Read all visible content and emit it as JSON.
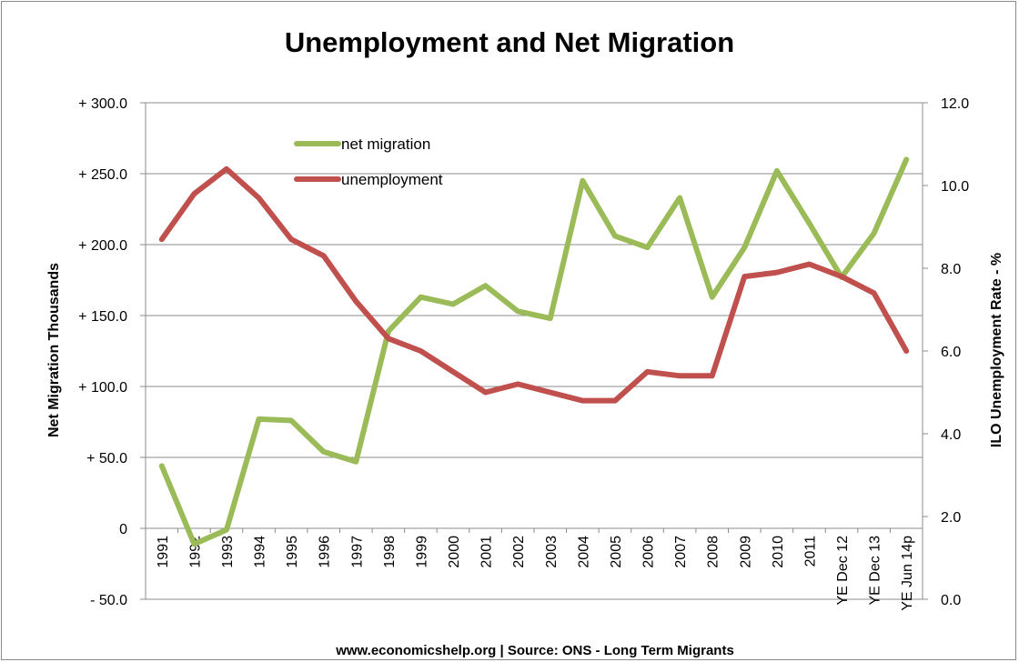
{
  "chart_data": {
    "type": "line",
    "title": "Unemployment and Net Migration",
    "footer": "www.economicshelp.org | Source: ONS - Long Term Migrants",
    "categories": [
      "1991",
      "1992",
      "1993",
      "1994",
      "1995",
      "1996",
      "1997",
      "1998",
      "1999",
      "2000",
      "2001",
      "2002",
      "2003",
      "2004",
      "2005",
      "2006",
      "2007",
      "2008",
      "2009",
      "2010",
      "2011",
      "YE Dec 12",
      "YE Dec 13",
      "YE Jun 14p"
    ],
    "y_left": {
      "label": "Net Migration Thousands",
      "ylim": [
        -50,
        300
      ],
      "ticks": [
        -50,
        0,
        50,
        100,
        150,
        200,
        250,
        300
      ],
      "tick_labels": [
        "-  50.0",
        "0",
        "+  50.0",
        "+  100.0",
        "+  150.0",
        "+  200.0",
        "+  250.0",
        "+  300.0"
      ]
    },
    "y_right": {
      "label": "ILO Unemployment Rate - %",
      "ylim": [
        0,
        12
      ],
      "ticks": [
        0,
        2,
        4,
        6,
        8,
        10,
        12
      ],
      "tick_labels": [
        "0.0",
        "2.0",
        "4.0",
        "6.0",
        "8.0",
        "10.0",
        "12.0"
      ]
    },
    "grid": true,
    "legend_position": "top-left",
    "series": [
      {
        "name": "net migration",
        "axis": "left",
        "color": "#9bbb59",
        "values": [
          44,
          -11,
          -1,
          77,
          76,
          54,
          47,
          139,
          163,
          158,
          171,
          153,
          148,
          245,
          206,
          198,
          233,
          163,
          198,
          252,
          215,
          177,
          208,
          260
        ]
      },
      {
        "name": "unemployment",
        "axis": "right",
        "color": "#c0504d",
        "values": [
          8.7,
          9.8,
          10.4,
          9.7,
          8.7,
          8.3,
          7.2,
          6.3,
          6.0,
          5.5,
          5.0,
          5.2,
          5.0,
          4.8,
          4.8,
          5.5,
          5.4,
          5.4,
          7.8,
          7.9,
          8.1,
          7.8,
          7.4,
          6.0
        ]
      }
    ]
  }
}
